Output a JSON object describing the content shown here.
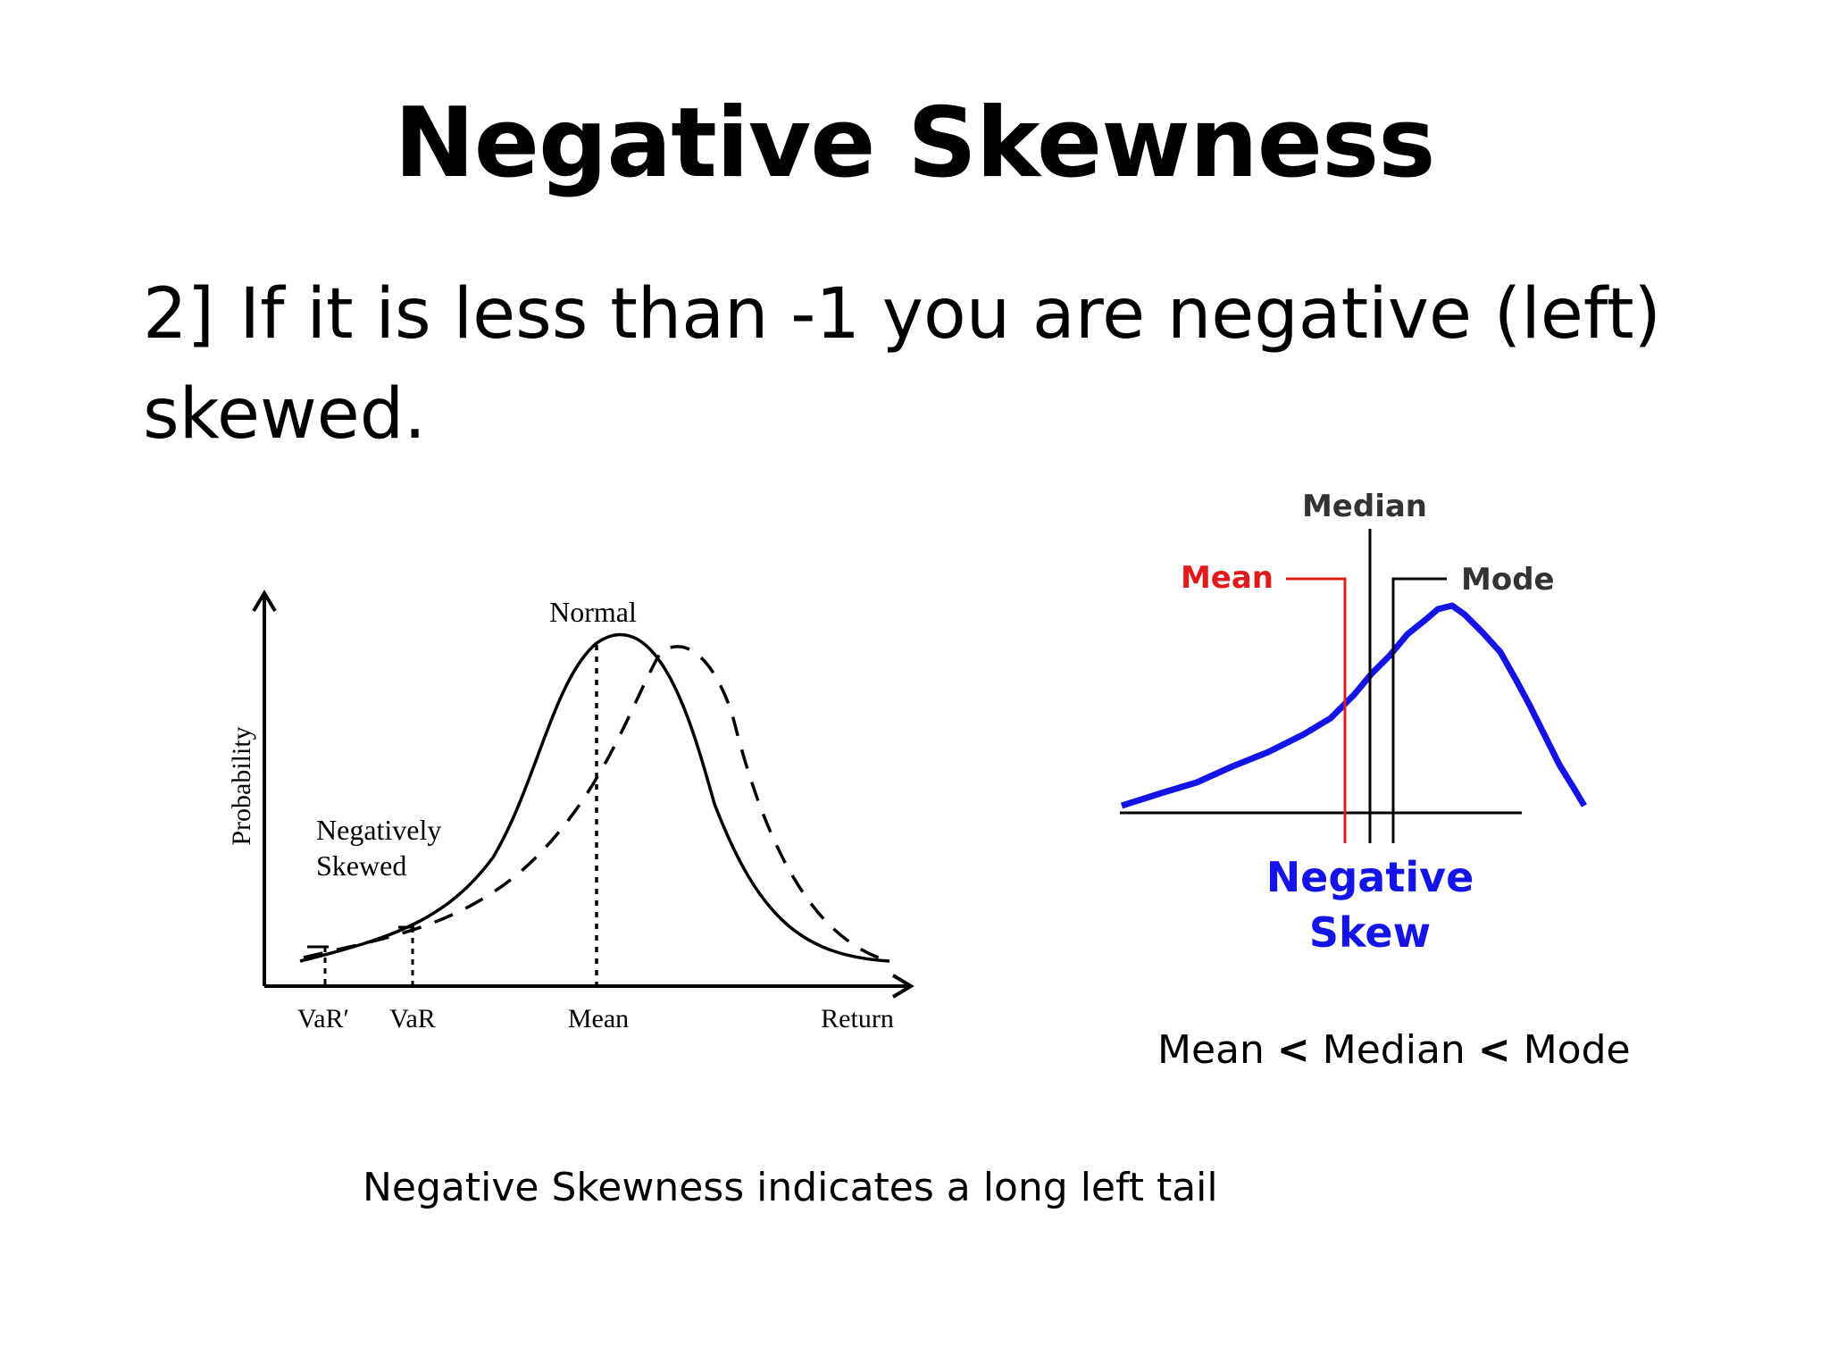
{
  "slide": {
    "title": "Negative Skewness",
    "bullet": {
      "number": "2]",
      "text": "If it is less than -1 you are negative (left) skewed."
    },
    "caption_relation": {
      "mean": "Mean",
      "op1": "<",
      "median": "Median",
      "op2": "<",
      "mode": "Mode"
    },
    "caption_tail": "Negative Skewness indicates a long left tail"
  },
  "left_diagram": {
    "ylabel": "Probability",
    "curve_normal_label": "Normal",
    "curve_skewed_label_line1": "Negatively",
    "curve_skewed_label_line2": "Skewed",
    "x_labels": {
      "var_prime": "VaR′",
      "var": "VaR",
      "mean": "Mean",
      "return": "Return"
    },
    "colors": {
      "ink": "#000000"
    }
  },
  "right_diagram": {
    "label_median": "Median",
    "label_mean": "Mean",
    "label_mode": "Mode",
    "label_line1": "Negative",
    "label_line2": "Skew",
    "colors": {
      "curve": "#1414e6",
      "mean_line": "#e01b1b",
      "axis": "#000000",
      "skew_label": "#1414e6",
      "mean_label": "#e01b1b"
    }
  }
}
